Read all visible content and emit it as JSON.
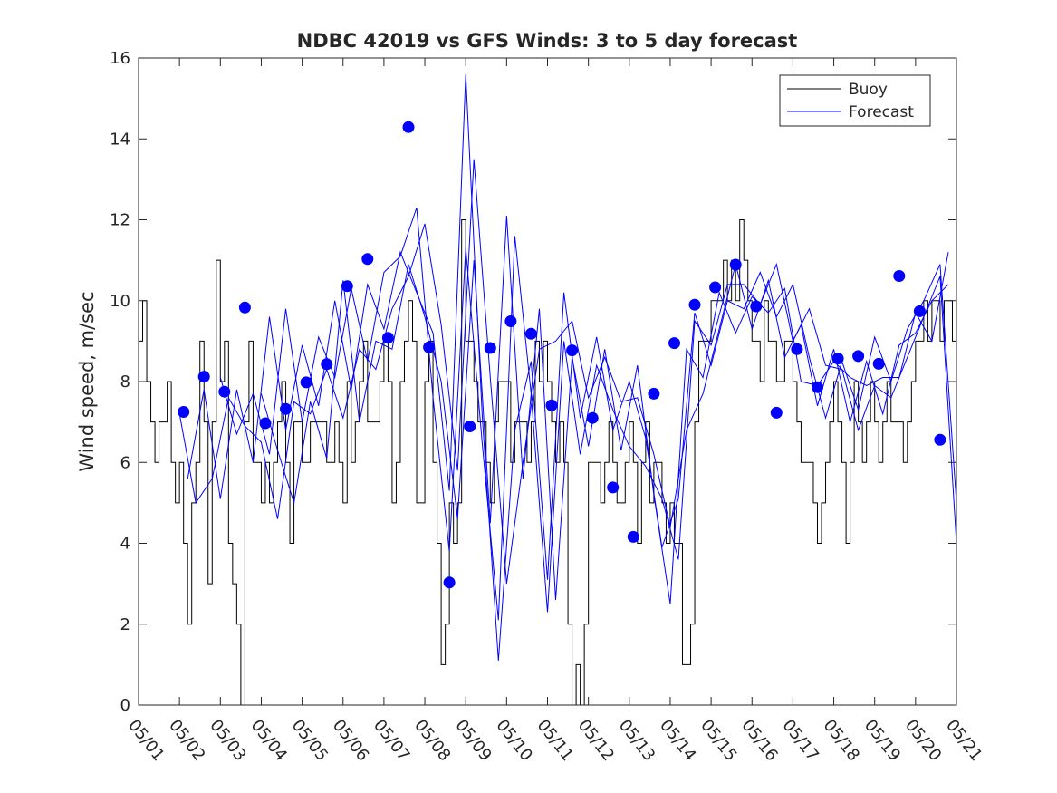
{
  "chart_data": {
    "type": "line",
    "title": "NDBC 42019 vs GFS Winds: 3 to 5 day forecast",
    "xlabel": "",
    "ylabel": "Wind speed, m/sec",
    "xlim": [
      "05/01",
      "05/21"
    ],
    "ylim": [
      0,
      16
    ],
    "yticks": [
      0,
      2,
      4,
      6,
      8,
      10,
      12,
      14,
      16
    ],
    "xtick_labels": [
      "05/01",
      "05/02",
      "05/03",
      "05/04",
      "05/05",
      "05/06",
      "05/07",
      "05/08",
      "05/09",
      "05/10",
      "05/11",
      "05/12",
      "05/13",
      "05/14",
      "05/15",
      "05/16",
      "05/17",
      "05/18",
      "05/19",
      "05/20",
      "05/21"
    ],
    "grid": false,
    "legend": {
      "position": "top-right",
      "entries": [
        {
          "label": "Buoy",
          "color": "#000000"
        },
        {
          "label": "Forecast",
          "color": "#0000ff"
        }
      ]
    },
    "series": [
      {
        "name": "Buoy",
        "color": "#000000",
        "style": "step",
        "x": [
          0.0,
          0.1,
          0.2,
          0.3,
          0.4,
          0.5,
          0.6,
          0.7,
          0.8,
          0.9,
          1.0,
          1.1,
          1.2,
          1.3,
          1.4,
          1.5,
          1.6,
          1.7,
          1.8,
          1.9,
          2.0,
          2.1,
          2.2,
          2.3,
          2.4,
          2.5,
          2.6,
          2.7,
          2.8,
          2.9,
          3.0,
          3.1,
          3.2,
          3.3,
          3.4,
          3.5,
          3.6,
          3.7,
          3.8,
          3.9,
          4.0,
          4.1,
          4.2,
          4.3,
          4.4,
          4.5,
          4.6,
          4.7,
          4.8,
          4.9,
          5.0,
          5.1,
          5.2,
          5.3,
          5.4,
          5.5,
          5.6,
          5.7,
          5.8,
          5.9,
          6.0,
          6.1,
          6.2,
          6.3,
          6.4,
          6.5,
          6.6,
          6.7,
          6.8,
          6.9,
          7.0,
          7.1,
          7.2,
          7.3,
          7.4,
          7.5,
          7.6,
          7.7,
          7.8,
          7.9,
          8.0,
          8.1,
          8.2,
          8.3,
          8.4,
          8.5,
          8.6,
          8.7,
          8.8,
          8.9,
          9.0,
          9.1,
          9.2,
          9.3,
          9.4,
          9.5,
          9.6,
          9.7,
          9.8,
          9.9,
          10.0,
          10.1,
          10.2,
          10.3,
          10.4,
          10.5,
          10.6,
          10.7,
          10.8,
          10.9,
          11.0,
          11.1,
          11.2,
          11.3,
          11.4,
          11.5,
          11.6,
          11.7,
          11.8,
          11.9,
          12.0,
          12.1,
          12.2,
          12.3,
          12.4,
          12.5,
          12.6,
          12.7,
          12.8,
          12.9,
          13.0,
          13.1,
          13.2,
          13.3,
          13.4,
          13.5,
          13.6,
          13.7,
          13.8,
          13.9,
          14.0,
          14.1,
          14.2,
          14.3,
          14.4,
          14.5,
          14.6,
          14.7,
          14.8,
          14.9,
          15.0,
          15.1,
          15.2,
          15.3,
          15.4,
          15.5,
          15.6,
          15.7,
          15.8,
          15.9,
          16.0,
          16.1,
          16.2,
          16.3,
          16.4,
          16.5,
          16.6,
          16.7,
          16.8,
          16.9,
          17.0,
          17.1,
          17.2,
          17.3,
          17.4,
          17.5,
          17.6,
          17.7,
          17.8,
          17.9,
          18.0,
          18.1,
          18.2,
          18.3,
          18.4,
          18.5,
          18.6,
          18.7,
          18.8,
          18.9,
          19.0,
          19.1,
          19.2,
          19.3,
          19.4,
          19.5,
          19.6,
          19.7,
          19.8,
          19.9,
          20.0
        ],
        "y": [
          9,
          10,
          8,
          7,
          6,
          7,
          7,
          8,
          6,
          5,
          6,
          4,
          2,
          5,
          6,
          9,
          7,
          3,
          7,
          11,
          8,
          9,
          4,
          3,
          2,
          0,
          7,
          9,
          6,
          6,
          5,
          6,
          5,
          6,
          7,
          8,
          6,
          4,
          7,
          7,
          6,
          6,
          7,
          7,
          7,
          7,
          6,
          6,
          7,
          6,
          5,
          8,
          6,
          7,
          8,
          9,
          7,
          7,
          7,
          8,
          9,
          8,
          5,
          6,
          8,
          9,
          10,
          9,
          5,
          5,
          8,
          9,
          6,
          4,
          1,
          2,
          5,
          4,
          5,
          12,
          9,
          9,
          8,
          7,
          7,
          6,
          5,
          7,
          8,
          8,
          8,
          6,
          7,
          7,
          7,
          6,
          7,
          9,
          8,
          9,
          8,
          7,
          6,
          7,
          6,
          2,
          0,
          1,
          0,
          2,
          6,
          6,
          6,
          5,
          6,
          7,
          6,
          5,
          5,
          6,
          7,
          6,
          4,
          6,
          7,
          5,
          6,
          6,
          5,
          4,
          5,
          4,
          4,
          1,
          1,
          2,
          7,
          9,
          9,
          9,
          10,
          10,
          10,
          11,
          10,
          11,
          10,
          12,
          11,
          10,
          9,
          9,
          8,
          10,
          9,
          9,
          8,
          8,
          9,
          9,
          8,
          7,
          6,
          6,
          6,
          5,
          4,
          5,
          6,
          7,
          8,
          7,
          6,
          4,
          6,
          8,
          7,
          6,
          7,
          8,
          7,
          6,
          7,
          8,
          7,
          7,
          7,
          6,
          7,
          8,
          9,
          9,
          10,
          9,
          10,
          10,
          9,
          10,
          10,
          9,
          10
        ]
      },
      {
        "name": "Forecast",
        "color": "#0000ff",
        "style": "line",
        "runs": [
          {
            "x": [
              1.0,
              1.4,
              1.8,
              2.2,
              2.6,
              3.0,
              3.4,
              3.8,
              4.2,
              4.6,
              5.0,
              5.4,
              5.8,
              6.2,
              6.6,
              7.0,
              7.4,
              7.8,
              8.2,
              8.6,
              9.0,
              9.4,
              9.8,
              10.2,
              10.6,
              11.0,
              11.4,
              11.8,
              12.2,
              12.6,
              13.0,
              13.4,
              13.8,
              14.2,
              14.6,
              15.0,
              15.4,
              15.8,
              16.2,
              16.6,
              17.0,
              17.4,
              17.8,
              18.2,
              18.6,
              19.0,
              19.4,
              19.8
            ],
            "y": [
              7.2,
              5.0,
              5.6,
              7.6,
              6.9,
              6.5,
              4.6,
              7.5,
              7.2,
              8.3,
              7.1,
              8.8,
              8.3,
              9.8,
              10.6,
              11.9,
              9.4,
              5.8,
              13.5,
              8.1,
              3.0,
              6.0,
              8.8,
              9.0,
              9.5,
              7.6,
              8.6,
              7.5,
              7.6,
              6.2,
              4.4,
              6.8,
              7.7,
              9.3,
              10.9,
              9.3,
              10.5,
              8.6,
              9.4,
              7.4,
              8.8,
              7.0,
              8.5,
              7.2,
              8.9,
              9.2,
              10.0,
              10.4
            ]
          },
          {
            "x": [
              1.2,
              1.6,
              2.0,
              2.4,
              2.8,
              3.2,
              3.6,
              4.0,
              4.4,
              4.8,
              5.2,
              5.6,
              6.0,
              6.4,
              6.8,
              7.2,
              7.6,
              8.0,
              8.4,
              8.8,
              9.2,
              9.6,
              10.0,
              10.4,
              10.8,
              11.2,
              11.6,
              12.0,
              12.4,
              12.8,
              13.2,
              13.6,
              14.0,
              14.4,
              14.8,
              15.2,
              15.6,
              16.0,
              16.4,
              16.8,
              17.2,
              17.6,
              18.0,
              18.4,
              18.8,
              19.2,
              19.6,
              20.0
            ],
            "y": [
              5.6,
              7.8,
              5.1,
              7.8,
              6.0,
              9.6,
              6.8,
              8.9,
              7.4,
              10.0,
              7.8,
              10.4,
              9.3,
              11.2,
              10.2,
              9.2,
              5.3,
              15.6,
              7.2,
              1.1,
              6.8,
              8.5,
              3.1,
              10.2,
              7.1,
              9.1,
              6.8,
              8.0,
              6.6,
              3.9,
              5.1,
              9.7,
              8.4,
              10.0,
              9.8,
              10.7,
              9.6,
              10.4,
              8.6,
              7.1,
              8.5,
              7.3,
              9.1,
              8.0,
              9.3,
              10.0,
              10.9,
              5.0
            ]
          },
          {
            "x": [
              2.0,
              2.4,
              2.8,
              3.2,
              3.6,
              4.0,
              4.4,
              4.8,
              5.2,
              5.6,
              6.0,
              6.4,
              6.8,
              7.2,
              7.6,
              8.0,
              8.4,
              8.8,
              9.2,
              9.6,
              10.0,
              10.4,
              10.8,
              11.2,
              11.6,
              12.0,
              12.4,
              12.8,
              13.2,
              13.6,
              14.0,
              14.4,
              14.8,
              15.2,
              15.6,
              16.0,
              16.4,
              16.8,
              17.2,
              17.6,
              18.0,
              18.4,
              18.8,
              19.2,
              19.6,
              20.0
            ],
            "y": [
              8.1,
              6.7,
              7.7,
              6.2,
              9.8,
              7.0,
              9.1,
              8.1,
              10.3,
              8.5,
              10.7,
              11.1,
              12.3,
              7.6,
              3.8,
              11.3,
              6.5,
              2.1,
              11.6,
              7.7,
              2.3,
              9.0,
              6.2,
              8.4,
              7.3,
              6.4,
              5.9,
              5.1,
              3.6,
              9.5,
              8.9,
              10.4,
              10.4,
              9.9,
              10.9,
              9.0,
              9.8,
              8.4,
              8.3,
              6.8,
              7.9,
              7.6,
              8.6,
              9.6,
              10.6,
              4.0
            ]
          },
          {
            "x": [
              3.0,
              3.4,
              3.8,
              4.2,
              4.6,
              5.0,
              5.4,
              5.8,
              6.2,
              6.6,
              7.0,
              7.4,
              7.8,
              8.2,
              8.6,
              9.0,
              9.4,
              9.8,
              10.2,
              10.6,
              11.0,
              11.4,
              11.8,
              12.2,
              12.6,
              13.0,
              13.4,
              13.8,
              14.2,
              14.6,
              15.0,
              15.4,
              15.8,
              16.2,
              16.6,
              17.0,
              17.4,
              17.8,
              18.2,
              18.6,
              19.0,
              19.4,
              19.8
            ],
            "y": [
              7.7,
              6.3,
              5.0,
              7.5,
              6.1,
              10.5,
              7.0,
              9.0,
              8.8,
              10.9,
              9.6,
              8.0,
              4.6,
              11.0,
              4.5,
              12.1,
              5.6,
              9.8,
              2.6,
              8.6,
              6.4,
              8.8,
              6.3,
              8.4,
              5.2,
              2.5,
              8.8,
              8.1,
              10.2,
              9.2,
              10.1,
              9.7,
              10.3,
              8.0,
              7.9,
              8.5,
              8.1,
              7.9,
              8.1,
              8.1,
              9.7,
              9.0,
              11.2
            ]
          }
        ],
        "markers": {
          "x": [
            1.1,
            1.6,
            2.1,
            2.6,
            3.1,
            3.6,
            4.1,
            4.6,
            5.1,
            5.6,
            6.1,
            6.6,
            7.1,
            7.6,
            8.1,
            8.6,
            9.1,
            9.6,
            10.1,
            10.6,
            11.1,
            11.6,
            12.1,
            12.6,
            13.1,
            13.6,
            14.1,
            14.6,
            15.1,
            15.6,
            16.1,
            16.6,
            17.1,
            17.6,
            18.1,
            18.6,
            19.1,
            19.6,
            20.1
          ],
          "y": [
            7.25,
            8.12,
            7.75,
            9.83,
            6.97,
            7.32,
            7.98,
            8.43,
            10.36,
            11.03,
            9.08,
            14.29,
            8.85,
            3.03,
            6.89,
            8.83,
            9.49,
            9.18,
            7.41,
            8.77,
            7.1,
            5.38,
            4.16,
            7.7,
            8.95,
            9.9,
            10.33,
            10.89,
            9.86,
            7.23,
            8.8,
            7.86,
            8.57,
            8.63,
            8.44,
            10.61,
            9.74,
            6.56,
            null
          ]
        }
      }
    ]
  }
}
